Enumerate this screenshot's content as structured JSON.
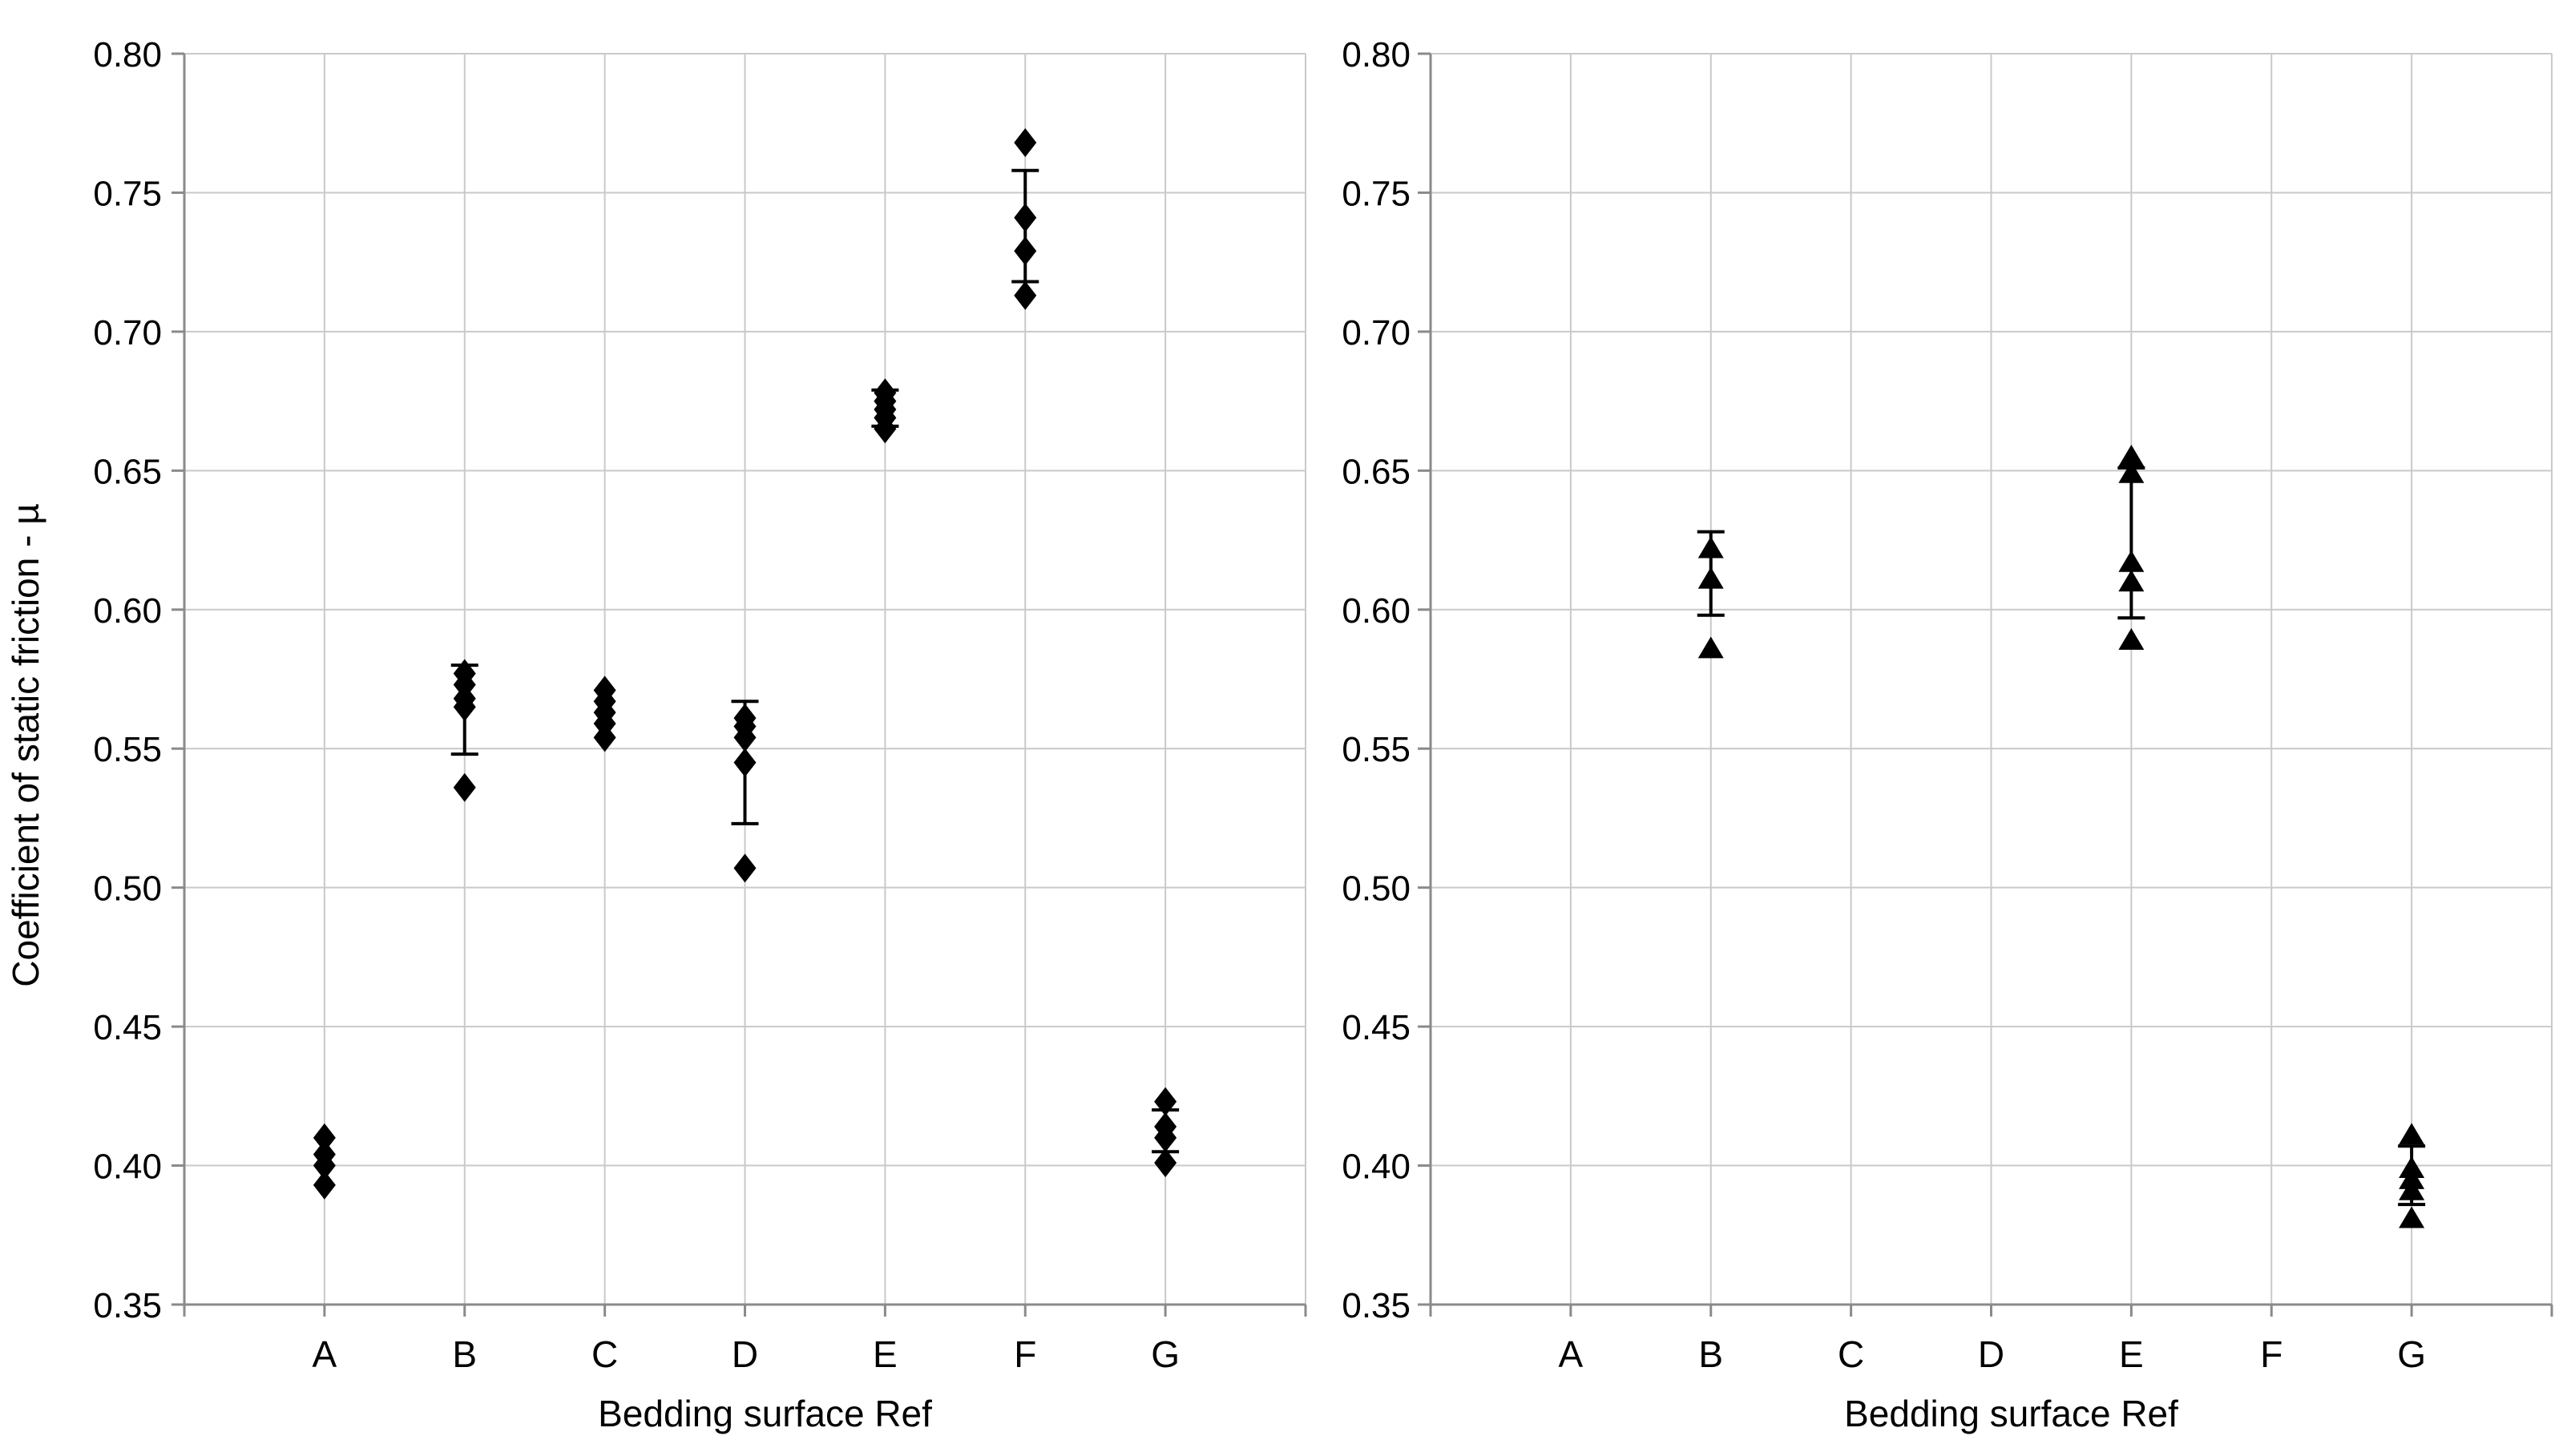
{
  "figure": {
    "background": "#ffffff",
    "text_color": "#000000",
    "gridline_color": "#c9c9c9",
    "axis_line_color": "#8a8a8a",
    "marker_color": "#000000"
  },
  "chart_data": [
    {
      "type": "scatter",
      "panel": "left",
      "marker": "diamond",
      "title": "",
      "xlabel": "Bedding surface Ref",
      "ylabel": "Coefficient of static friction - µ",
      "categories": [
        "A",
        "B",
        "C",
        "D",
        "E",
        "F",
        "G"
      ],
      "ylim": [
        0.35,
        0.8
      ],
      "grid": true,
      "legend": "none",
      "yticks": {
        "values": [
          0.8,
          0.75,
          0.7,
          0.65,
          0.6,
          0.55,
          0.5,
          0.45,
          0.4,
          0.35
        ],
        "labels": [
          "0.80",
          "0.75",
          "0.70",
          "0.65",
          "0.60",
          "0.55",
          "0.50",
          "0.45",
          "0.40",
          "0.35"
        ]
      },
      "points": {
        "A": [
          0.41,
          0.404,
          0.4,
          0.393
        ],
        "B": [
          0.577,
          0.573,
          0.568,
          0.565,
          0.536
        ],
        "C": [
          0.571,
          0.567,
          0.563,
          0.559,
          0.554
        ],
        "D": [
          0.561,
          0.558,
          0.554,
          0.545,
          0.507
        ],
        "E": [
          0.678,
          0.675,
          0.672,
          0.669,
          0.665
        ],
        "F": [
          0.768,
          0.741,
          0.729,
          0.713
        ],
        "G": [
          0.423,
          0.414,
          0.41,
          0.401
        ]
      },
      "error_bars": {
        "B": [
          0.548,
          0.58
        ],
        "D": [
          0.523,
          0.567
        ],
        "E": [
          0.666,
          0.679
        ],
        "F": [
          0.718,
          0.758
        ],
        "G": [
          0.405,
          0.42
        ]
      }
    },
    {
      "type": "scatter",
      "panel": "right",
      "marker": "triangle",
      "title": "",
      "xlabel": "Bedding surface Ref",
      "ylabel": "",
      "categories": [
        "A",
        "B",
        "C",
        "D",
        "E",
        "F",
        "G"
      ],
      "ylim": [
        0.35,
        0.8
      ],
      "grid": true,
      "legend": "none",
      "yticks": {
        "values": [
          0.8,
          0.75,
          0.7,
          0.65,
          0.6,
          0.55,
          0.5,
          0.45,
          0.4,
          0.35
        ],
        "labels": [
          "0.80",
          "0.75",
          "0.70",
          "0.65",
          "0.60",
          "0.55",
          "0.50",
          "0.45",
          "0.40",
          "0.35"
        ]
      },
      "points": {
        "A": [],
        "B": [
          0.622,
          0.611,
          0.586
        ],
        "C": [],
        "D": [],
        "E": [
          0.655,
          0.649,
          0.617,
          0.61,
          0.589
        ],
        "F": [],
        "G": [
          0.411,
          0.399,
          0.395,
          0.391,
          0.381
        ]
      },
      "error_bars": {
        "B": [
          0.598,
          0.628
        ],
        "E": [
          0.597,
          0.651
        ],
        "G": [
          0.386,
          0.407
        ]
      }
    }
  ]
}
